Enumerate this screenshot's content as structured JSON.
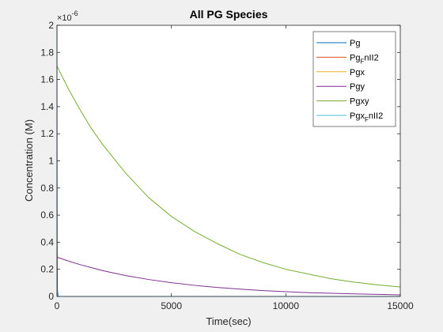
{
  "chart_data": {
    "type": "line",
    "title": "All PG Species",
    "xlabel": "Time(sec)",
    "ylabel": "Concentration (M)",
    "y_exponent_label": "×10",
    "y_exponent_power": "-6",
    "xlim": [
      0,
      15000
    ],
    "ylim": [
      0,
      2e-06
    ],
    "x_ticks": [
      0,
      5000,
      10000,
      15000
    ],
    "x_tick_labels": [
      "0",
      "5000",
      "10000",
      "15000"
    ],
    "y_ticks": [
      0,
      2e-07,
      4e-07,
      6e-07,
      8e-07,
      1e-06,
      1.2e-06,
      1.4e-06,
      1.6e-06,
      1.8e-06,
      2e-06
    ],
    "y_tick_labels": [
      "0",
      "0.2",
      "0.4",
      "0.6",
      "0.8",
      "1",
      "1.2",
      "1.4",
      "1.6",
      "1.8",
      "2"
    ],
    "grid": false,
    "legend_position": "top-right",
    "series": [
      {
        "name": "Pg",
        "sub": "",
        "suffix": "",
        "color": "#0072bd",
        "x": [
          0,
          0,
          5,
          10,
          20,
          50,
          100,
          15000
        ],
        "y": [
          2e-06,
          1.7e-06,
          1e-06,
          4e-07,
          5e-08,
          0.0,
          0.0,
          0.0
        ]
      },
      {
        "name": "Pg",
        "sub": "F",
        "suffix": "nII2",
        "color": "#d95319",
        "x": [
          0,
          5000,
          10000,
          15000
        ],
        "y": [
          0.0,
          0.0,
          0.0,
          0.0
        ]
      },
      {
        "name": "Pgx",
        "sub": "",
        "suffix": "",
        "color": "#edb120",
        "x": [
          0,
          5000,
          10000,
          15000
        ],
        "y": [
          0.0,
          0.0,
          0.0,
          0.0
        ]
      },
      {
        "name": "Pgy",
        "sub": "",
        "suffix": "",
        "color": "#7e2f8e",
        "x": [
          0,
          500,
          1000,
          2000,
          3000,
          4000,
          5000,
          6000,
          7000,
          8000,
          9000,
          10000,
          11000,
          12000,
          13000,
          14000,
          15000
        ],
        "y": [
          2.9e-07,
          2.61e-07,
          2.35e-07,
          1.9e-07,
          1.54e-07,
          1.25e-07,
          1.01e-07,
          8.2e-08,
          6.6e-08,
          5.4e-08,
          4.3e-08,
          3.5e-08,
          2.8e-08,
          2.3e-08,
          1.9e-08,
          1.5e-08,
          1.2e-08
        ]
      },
      {
        "name": "Pgxy",
        "sub": "",
        "suffix": "",
        "color": "#77ac30",
        "x": [
          0,
          500,
          1000,
          1500,
          2000,
          3000,
          4000,
          5000,
          6000,
          7000,
          8000,
          9000,
          10000,
          11000,
          12000,
          13000,
          14000,
          15000
        ],
        "y": [
          1.7e-06,
          1.53e-06,
          1.38e-06,
          1.24e-06,
          1.12e-06,
          9.1e-07,
          7.3e-07,
          5.9e-07,
          4.8e-07,
          3.9e-07,
          3.1e-07,
          2.5e-07,
          2e-07,
          1.65e-07,
          1.3e-07,
          1.05e-07,
          8.5e-08,
          7e-08
        ]
      },
      {
        "name": "Pgx",
        "sub": "F",
        "suffix": "nII2",
        "color": "#4dbeee",
        "x": [
          0,
          5000,
          10000,
          15000
        ],
        "y": [
          0.0,
          0.0,
          0.0,
          0.0
        ]
      }
    ]
  }
}
